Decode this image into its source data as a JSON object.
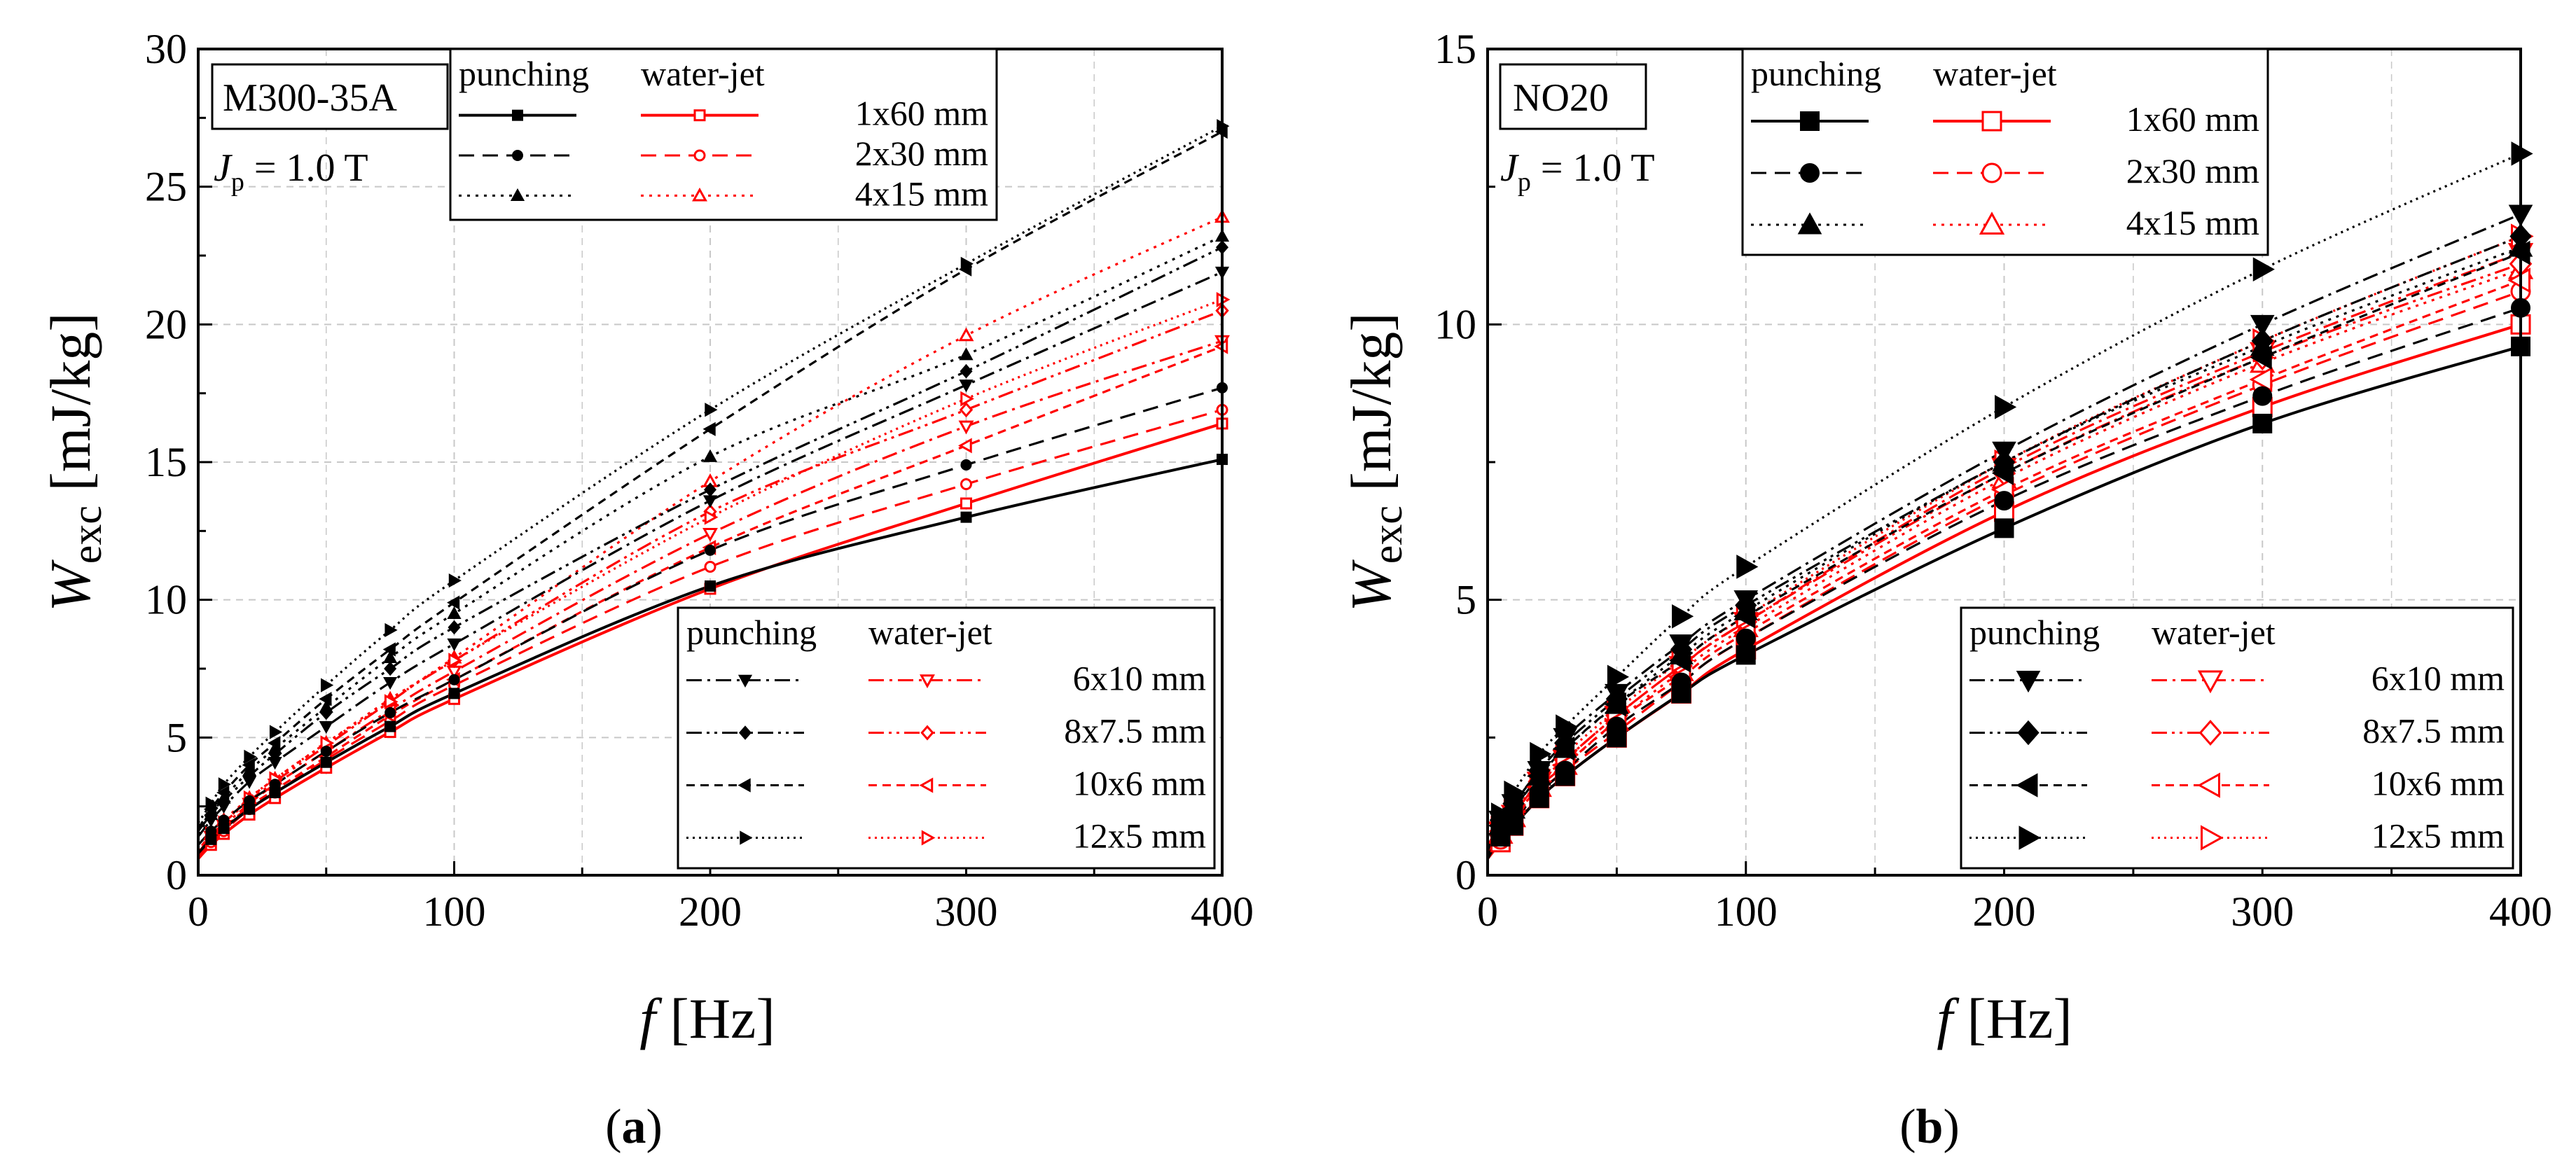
{
  "figure": {
    "captions": [
      "(a)",
      "(b)"
    ],
    "colors": {
      "punching": "#000000",
      "waterjet": "#ff0000",
      "grid": "#c8c8c8"
    }
  },
  "chart_data": [
    {
      "type": "line",
      "panel": "(a)",
      "material": "M300-35A",
      "condition_prefix": "J",
      "condition_sub": "p",
      "condition_value": " = 1.0 T",
      "xlabel_symbol": "f",
      "xlabel_unit": " [Hz]",
      "ylabel_symbol": "W",
      "ylabel_sub": "exc",
      "ylabel_unit": " [mJ/kg]",
      "xlim": [
        0,
        400
      ],
      "ylim": [
        0,
        30
      ],
      "xticks": [
        0,
        100,
        200,
        300,
        400
      ],
      "yticks": [
        0,
        5,
        10,
        15,
        20,
        25,
        30
      ],
      "grid": true,
      "legend_headers": [
        "punching",
        "water-jet"
      ],
      "x": [
        0,
        5,
        10,
        20,
        30,
        50,
        75,
        100,
        200,
        300,
        400
      ],
      "series": [
        {
          "name": "1x60 mm punching",
          "cut": "punching",
          "size": "1x60 mm",
          "dash": "solid",
          "marker": "square",
          "values": [
            0.8,
            1.3,
            1.7,
            2.4,
            3.0,
            4.1,
            5.4,
            6.6,
            10.5,
            13.0,
            15.1
          ]
        },
        {
          "name": "2x30 mm punching",
          "cut": "punching",
          "size": "2x30 mm",
          "dash": "dash",
          "marker": "circle",
          "values": [
            1.1,
            1.6,
            2.0,
            2.7,
            3.3,
            4.5,
            5.9,
            7.1,
            11.8,
            14.9,
            17.7
          ]
        },
        {
          "name": "4x15 mm punching",
          "cut": "punching",
          "size": "4x15 mm",
          "dash": "dot",
          "marker": "triangle-up",
          "values": [
            1.5,
            2.2,
            2.8,
            3.8,
            4.6,
            6.1,
            7.9,
            9.5,
            15.2,
            18.9,
            23.2
          ]
        },
        {
          "name": "6x10 mm punching",
          "cut": "punching",
          "size": "6x10 mm",
          "dash": "dashdot",
          "marker": "triangle-down",
          "values": [
            1.4,
            2.0,
            2.5,
            3.4,
            4.1,
            5.4,
            7.0,
            8.4,
            13.6,
            17.8,
            21.9
          ]
        },
        {
          "name": "8x7.5 mm punching",
          "cut": "punching",
          "size": "8x7.5 mm",
          "dash": "dashdotdot",
          "marker": "diamond",
          "values": [
            1.6,
            2.2,
            2.7,
            3.6,
            4.4,
            5.9,
            7.5,
            9.0,
            14.0,
            18.3,
            22.8
          ]
        },
        {
          "name": "10x6 mm punching",
          "cut": "punching",
          "size": "10x6 mm",
          "dash": "shortdash",
          "marker": "triangle-left",
          "values": [
            1.7,
            2.4,
            3.0,
            4.0,
            4.8,
            6.4,
            8.2,
            9.9,
            16.2,
            22.0,
            27.0
          ]
        },
        {
          "name": "12x5 mm punching",
          "cut": "punching",
          "size": "12x5 mm",
          "dash": "shortdot",
          "marker": "triangle-right",
          "values": [
            1.9,
            2.6,
            3.3,
            4.3,
            5.2,
            6.9,
            8.9,
            10.7,
            16.9,
            22.2,
            27.2
          ]
        },
        {
          "name": "1x60 mm water-jet",
          "cut": "water-jet",
          "size": "1x60 mm",
          "dash": "solid",
          "marker": "square-open",
          "values": [
            0.6,
            1.1,
            1.5,
            2.2,
            2.8,
            3.9,
            5.2,
            6.4,
            10.4,
            13.5,
            16.4
          ]
        },
        {
          "name": "2x30 mm water-jet",
          "cut": "water-jet",
          "size": "2x30 mm",
          "dash": "dash",
          "marker": "circle-open",
          "values": [
            0.7,
            1.2,
            1.6,
            2.4,
            3.0,
            4.2,
            5.6,
            6.9,
            11.2,
            14.2,
            16.9
          ]
        },
        {
          "name": "4x15 mm water-jet",
          "cut": "water-jet",
          "size": "4x15 mm",
          "dash": "dot",
          "marker": "triangle-up-open",
          "values": [
            0.9,
            1.5,
            2.0,
            2.8,
            3.5,
            4.8,
            6.4,
            7.9,
            14.3,
            19.6,
            23.9
          ]
        },
        {
          "name": "6x10 mm water-jet",
          "cut": "water-jet",
          "size": "6x10 mm",
          "dash": "dashdot",
          "marker": "triangle-down-open",
          "values": [
            0.8,
            1.4,
            1.8,
            2.6,
            3.3,
            4.5,
            6.0,
            7.4,
            12.4,
            16.3,
            19.4
          ]
        },
        {
          "name": "8x7.5 mm water-jet",
          "cut": "water-jet",
          "size": "8x7.5 mm",
          "dash": "dashdotdot",
          "marker": "diamond-open",
          "values": [
            0.8,
            1.4,
            1.9,
            2.7,
            3.4,
            4.7,
            6.3,
            7.8,
            13.2,
            16.9,
            20.5
          ]
        },
        {
          "name": "10x6 mm water-jet",
          "cut": "water-jet",
          "size": "10x6 mm",
          "dash": "shortdash",
          "marker": "triangle-left-open",
          "values": [
            0.7,
            1.3,
            1.7,
            2.5,
            3.1,
            4.3,
            5.8,
            7.1,
            11.9,
            15.6,
            19.2
          ]
        },
        {
          "name": "12x5 mm water-jet",
          "cut": "water-jet",
          "size": "12x5 mm",
          "dash": "shortdot",
          "marker": "triangle-right-open",
          "values": [
            0.9,
            1.5,
            1.9,
            2.8,
            3.5,
            4.8,
            6.3,
            7.8,
            13.0,
            17.3,
            20.9
          ]
        }
      ],
      "legend_groups": [
        [
          "1x60 mm",
          "2x30 mm",
          "4x15 mm"
        ],
        [
          "6x10 mm",
          "8x7.5 mm",
          "10x6 mm",
          "12x5 mm"
        ]
      ]
    },
    {
      "type": "line",
      "panel": "(b)",
      "material": "NO20",
      "condition_prefix": "J",
      "condition_sub": "p",
      "condition_value": " = 1.0 T",
      "xlabel_symbol": "f",
      "xlabel_unit": " [Hz]",
      "ylabel_symbol": "W",
      "ylabel_sub": "exc",
      "ylabel_unit": " [mJ/kg]",
      "xlim": [
        0,
        400
      ],
      "ylim": [
        0,
        15
      ],
      "xticks": [
        0,
        100,
        200,
        300,
        400
      ],
      "yticks": [
        0,
        5,
        10,
        15
      ],
      "grid": true,
      "legend_headers": [
        "punching",
        "water-jet"
      ],
      "x": [
        0,
        5,
        10,
        20,
        30,
        50,
        75,
        100,
        200,
        300,
        400
      ],
      "series": [
        {
          "name": "1x60 mm punching",
          "cut": "punching",
          "size": "1x60 mm",
          "dash": "solid",
          "marker": "square",
          "values": [
            0.3,
            0.7,
            0.9,
            1.4,
            1.8,
            2.5,
            3.3,
            4.0,
            6.3,
            8.2,
            9.6
          ]
        },
        {
          "name": "2x30 mm punching",
          "cut": "punching",
          "size": "2x30 mm",
          "dash": "dash",
          "marker": "circle",
          "values": [
            0.35,
            0.75,
            1.0,
            1.5,
            1.9,
            2.7,
            3.5,
            4.3,
            6.8,
            8.7,
            10.3
          ]
        },
        {
          "name": "4x15 mm punching",
          "cut": "punching",
          "size": "4x15 mm",
          "dash": "dot",
          "marker": "triangle-up",
          "values": [
            0.45,
            0.9,
            1.2,
            1.8,
            2.3,
            3.1,
            4.0,
            4.8,
            7.5,
            9.6,
            11.4
          ]
        },
        {
          "name": "6x10 mm punching",
          "cut": "punching",
          "size": "6x10 mm",
          "dash": "dashdot",
          "marker": "triangle-down",
          "values": [
            0.5,
            1.0,
            1.3,
            1.9,
            2.5,
            3.3,
            4.2,
            5.0,
            7.7,
            10.0,
            12.0
          ]
        },
        {
          "name": "8x7.5 mm punching",
          "cut": "punching",
          "size": "8x7.5 mm",
          "dash": "dashdotdot",
          "marker": "diamond",
          "values": [
            0.5,
            1.0,
            1.3,
            1.9,
            2.4,
            3.2,
            4.1,
            4.9,
            7.5,
            9.7,
            11.6
          ]
        },
        {
          "name": "10x6 mm punching",
          "cut": "punching",
          "size": "10x6 mm",
          "dash": "shortdash",
          "marker": "triangle-left",
          "values": [
            0.45,
            0.9,
            1.2,
            1.8,
            2.3,
            3.1,
            3.9,
            4.7,
            7.3,
            9.4,
            11.3
          ]
        },
        {
          "name": "12x5 mm punching",
          "cut": "punching",
          "size": "12x5 mm",
          "dash": "shortdot",
          "marker": "triangle-right",
          "values": [
            0.6,
            1.1,
            1.5,
            2.2,
            2.7,
            3.6,
            4.7,
            5.6,
            8.5,
            11.0,
            13.1
          ]
        },
        {
          "name": "1x60 mm water-jet",
          "cut": "water-jet",
          "size": "1x60 mm",
          "dash": "solid",
          "marker": "square-open",
          "values": [
            0.3,
            0.6,
            0.9,
            1.4,
            1.8,
            2.5,
            3.3,
            4.1,
            6.6,
            8.5,
            10.0
          ]
        },
        {
          "name": "2x30 mm water-jet",
          "cut": "water-jet",
          "size": "2x30 mm",
          "dash": "dash",
          "marker": "circle-open",
          "values": [
            0.3,
            0.65,
            0.95,
            1.5,
            1.9,
            2.6,
            3.5,
            4.3,
            6.9,
            8.9,
            10.6
          ]
        },
        {
          "name": "4x15 mm water-jet",
          "cut": "water-jet",
          "size": "4x15 mm",
          "dash": "dot",
          "marker": "triangle-up-open",
          "values": [
            0.35,
            0.75,
            1.05,
            1.6,
            2.0,
            2.8,
            3.7,
            4.5,
            7.2,
            9.3,
            11.0
          ]
        },
        {
          "name": "6x10 mm water-jet",
          "cut": "water-jet",
          "size": "6x10 mm",
          "dash": "dashdot",
          "marker": "triangle-down-open",
          "values": [
            0.4,
            0.8,
            1.1,
            1.7,
            2.1,
            2.9,
            3.8,
            4.6,
            7.4,
            9.5,
            11.3
          ]
        },
        {
          "name": "8x7.5 mm water-jet",
          "cut": "water-jet",
          "size": "8x7.5 mm",
          "dash": "dashdotdot",
          "marker": "diamond-open",
          "values": [
            0.4,
            0.8,
            1.1,
            1.7,
            2.1,
            2.9,
            3.8,
            4.6,
            7.3,
            9.4,
            11.1
          ]
        },
        {
          "name": "10x6 mm water-jet",
          "cut": "water-jet",
          "size": "10x6 mm",
          "dash": "shortdash",
          "marker": "triangle-left-open",
          "values": [
            0.35,
            0.75,
            1.05,
            1.6,
            2.0,
            2.8,
            3.6,
            4.4,
            7.0,
            9.0,
            10.8
          ]
        },
        {
          "name": "12x5 mm water-jet",
          "cut": "water-jet",
          "size": "12x5 mm",
          "dash": "shortdot",
          "marker": "triangle-right-open",
          "values": [
            0.45,
            0.85,
            1.15,
            1.7,
            2.2,
            3.0,
            3.9,
            4.7,
            7.5,
            9.7,
            11.6
          ]
        }
      ],
      "legend_groups": [
        [
          "1x60 mm",
          "2x30 mm",
          "4x15 mm"
        ],
        [
          "6x10 mm",
          "8x7.5 mm",
          "10x6 mm",
          "12x5 mm"
        ]
      ]
    }
  ]
}
